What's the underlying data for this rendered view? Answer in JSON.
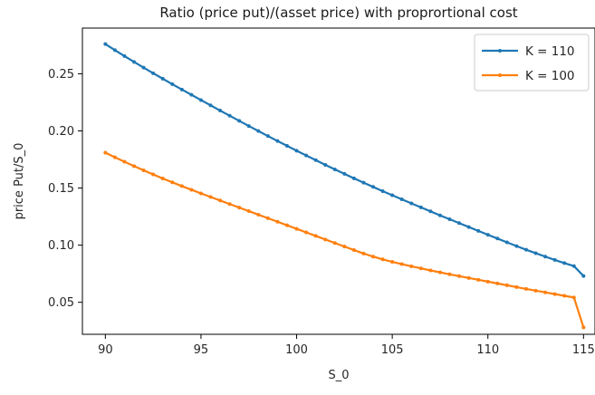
{
  "chart_data": {
    "type": "line",
    "title": "Ratio (price put)/(asset price) with proprortional cost",
    "xlabel": "S_0",
    "ylabel": "price Put/S_0",
    "xlim": [
      88.8,
      115.6
    ],
    "ylim": [
      0.022,
      0.29
    ],
    "xticks": [
      90,
      95,
      100,
      105,
      110,
      115
    ],
    "yticks": [
      0.05,
      0.1,
      0.15,
      0.2,
      0.25
    ],
    "ytick_labels": [
      "0.05",
      "0.10",
      "0.15",
      "0.20",
      "0.25"
    ],
    "grid": false,
    "legend_position": "top-right",
    "x": [
      90.0,
      90.5,
      91.0,
      91.5,
      92.0,
      92.5,
      93.0,
      93.5,
      94.0,
      94.5,
      95.0,
      95.5,
      96.0,
      96.5,
      97.0,
      97.5,
      98.0,
      98.5,
      99.0,
      99.5,
      100.0,
      100.5,
      101.0,
      101.5,
      102.0,
      102.5,
      103.0,
      103.5,
      104.0,
      104.5,
      105.0,
      105.5,
      106.0,
      106.5,
      107.0,
      107.5,
      108.0,
      108.5,
      109.0,
      109.5,
      110.0,
      110.5,
      111.0,
      111.5,
      112.0,
      112.5,
      113.0,
      113.5,
      114.0,
      114.5,
      115.0
    ],
    "series": [
      {
        "name": "K = 110",
        "color": "#1f77b4",
        "values": [
          0.276,
          0.2707,
          0.2655,
          0.2604,
          0.2554,
          0.2505,
          0.2457,
          0.2409,
          0.2362,
          0.2316,
          0.227,
          0.2224,
          0.2178,
          0.2133,
          0.2088,
          0.2043,
          0.1999,
          0.1955,
          0.1912,
          0.1869,
          0.1827,
          0.1785,
          0.1744,
          0.1703,
          0.1663,
          0.1624,
          0.1585,
          0.1547,
          0.151,
          0.1473,
          0.1437,
          0.1401,
          0.1366,
          0.1331,
          0.1296,
          0.1261,
          0.1227,
          0.1193,
          0.1159,
          0.1125,
          0.1091,
          0.1058,
          0.1025,
          0.0992,
          0.096,
          0.093,
          0.09,
          0.0871,
          0.0843,
          0.0817,
          0.073
        ]
      },
      {
        "name": "K = 100",
        "color": "#ff7f0e",
        "values": [
          0.181,
          0.1769,
          0.173,
          0.1692,
          0.1655,
          0.1619,
          0.1584,
          0.155,
          0.1517,
          0.1485,
          0.1453,
          0.1422,
          0.1391,
          0.136,
          0.1329,
          0.1298,
          0.1267,
          0.1236,
          0.1205,
          0.1174,
          0.1143,
          0.1112,
          0.1081,
          0.105,
          0.1019,
          0.0988,
          0.0957,
          0.0927,
          0.09,
          0.0876,
          0.0854,
          0.0834,
          0.0815,
          0.0797,
          0.0779,
          0.0762,
          0.0745,
          0.0729,
          0.0713,
          0.0697,
          0.0681,
          0.0665,
          0.0649,
          0.0633,
          0.0617,
          0.0602,
          0.0587,
          0.0572,
          0.0557,
          0.0542,
          0.028
        ]
      }
    ]
  }
}
